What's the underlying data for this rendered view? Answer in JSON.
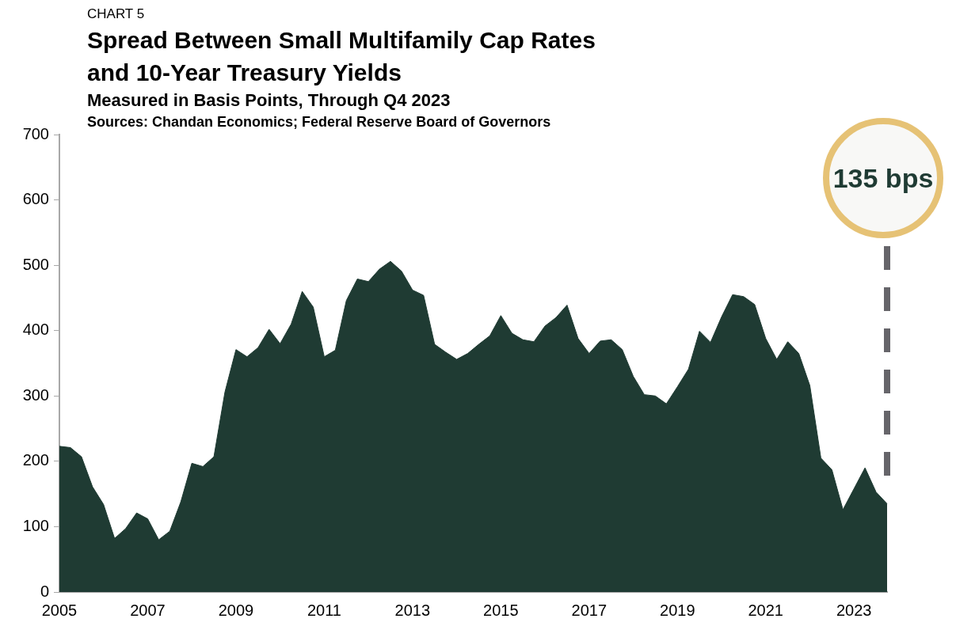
{
  "chart_data": {
    "type": "area",
    "title": "Spread Between Small Multifamily Cap Rates and 10-Year Treasury Yields",
    "subtitle": "Measured in Basis Points, Through Q4 2023",
    "annotations": [
      "CHART 5",
      "Sources: Chandan Economics; Federal Reserve Board of Governors",
      "135 bps"
    ],
    "categories": [
      "2005",
      null,
      null,
      null,
      null,
      null,
      null,
      null,
      "2007",
      null,
      null,
      null,
      null,
      null,
      null,
      null,
      "2009",
      null,
      null,
      null,
      null,
      null,
      null,
      null,
      "2011",
      null,
      null,
      null,
      null,
      null,
      null,
      null,
      "2013",
      null,
      null,
      null,
      null,
      null,
      null,
      null,
      "2015",
      null,
      null,
      null,
      null,
      null,
      null,
      null,
      "2017",
      null,
      null,
      null,
      null,
      null,
      null,
      null,
      "2019",
      null,
      null,
      null,
      null,
      null,
      null,
      null,
      "2021",
      null,
      null,
      null,
      null,
      null,
      null,
      null,
      "2023",
      null,
      null,
      null
    ],
    "series": [
      {
        "color": "#1f3b33",
        "values": [
          223,
          221,
          207,
          161,
          134,
          82,
          97,
          121,
          112,
          80,
          93,
          138,
          197,
          192,
          207,
          306,
          371,
          360,
          374,
          402,
          380,
          410,
          460,
          436,
          360,
          370,
          446,
          479,
          475,
          494,
          506,
          491,
          462,
          454,
          379,
          367,
          356,
          365,
          379,
          392,
          423,
          396,
          386,
          383,
          407,
          420,
          439,
          388,
          365,
          384,
          386,
          371,
          330,
          302,
          300,
          288,
          314,
          341,
          399,
          382,
          421,
          455,
          452,
          440,
          388,
          356,
          383,
          365,
          316,
          205,
          187,
          126,
          158,
          190,
          153,
          135
        ]
      }
    ],
    "ylim": [
      0,
      700
    ],
    "yticks": [
      0,
      100,
      200,
      300,
      400,
      500,
      600,
      700
    ],
    "grid": false,
    "legend": false
  }
}
